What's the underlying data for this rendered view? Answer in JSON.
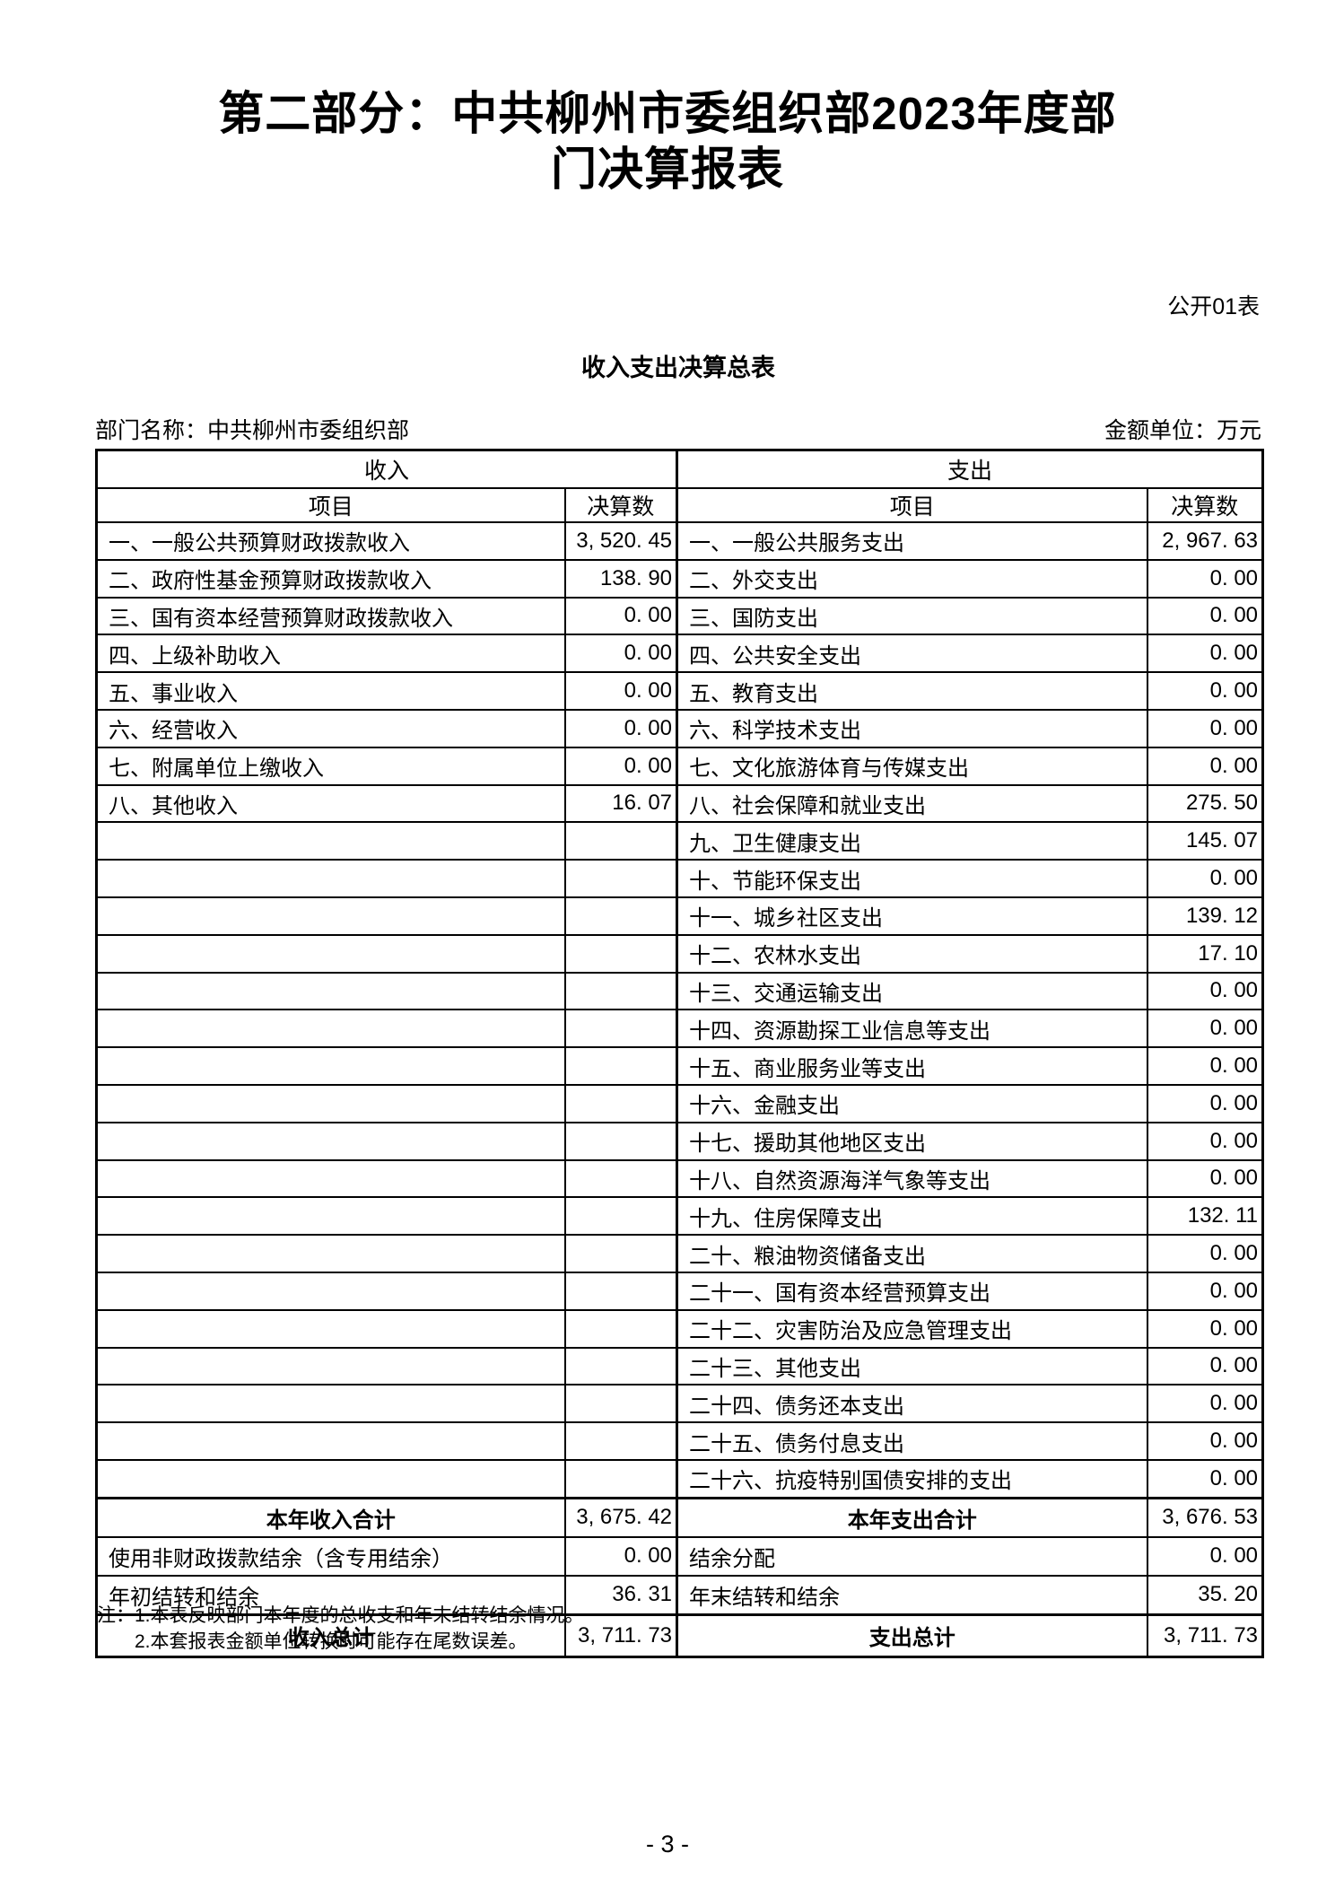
{
  "page": {
    "title_line1": "第二部分：中共柳州市委组织部2023年度部",
    "title_line2": "门决算报表",
    "table_code": "公开01表",
    "table_title": "收入支出决算总表",
    "dept_label": "部门名称：中共柳州市委组织部",
    "unit_label": "金额单位：万元",
    "page_number": "- 3 -"
  },
  "table": {
    "income_header": "收入",
    "expense_header": "支出",
    "item_header": "项目",
    "amount_header": "决算数",
    "rows": [
      {
        "income_item": "一、一般公共预算财政拨款收入",
        "income_value": "3, 520. 45",
        "expense_item": "一、一般公共服务支出",
        "expense_value": "2, 967. 63"
      },
      {
        "income_item": "二、政府性基金预算财政拨款收入",
        "income_value": "138. 90",
        "expense_item": "二、外交支出",
        "expense_value": "0. 00"
      },
      {
        "income_item": "三、国有资本经营预算财政拨款收入",
        "income_value": "0. 00",
        "expense_item": "三、国防支出",
        "expense_value": "0. 00"
      },
      {
        "income_item": "四、上级补助收入",
        "income_value": "0. 00",
        "expense_item": "四、公共安全支出",
        "expense_value": "0. 00"
      },
      {
        "income_item": "五、事业收入",
        "income_value": "0. 00",
        "expense_item": "五、教育支出",
        "expense_value": "0. 00"
      },
      {
        "income_item": "六、经营收入",
        "income_value": "0. 00",
        "expense_item": "六、科学技术支出",
        "expense_value": "0. 00"
      },
      {
        "income_item": "七、附属单位上缴收入",
        "income_value": "0. 00",
        "expense_item": "七、文化旅游体育与传媒支出",
        "expense_value": "0. 00"
      },
      {
        "income_item": "八、其他收入",
        "income_value": "16. 07",
        "expense_item": "八、社会保障和就业支出",
        "expense_value": "275. 50"
      },
      {
        "income_item": "",
        "income_value": "",
        "expense_item": "九、卫生健康支出",
        "expense_value": "145. 07"
      },
      {
        "income_item": "",
        "income_value": "",
        "expense_item": "十、节能环保支出",
        "expense_value": "0. 00"
      },
      {
        "income_item": "",
        "income_value": "",
        "expense_item": "十一、城乡社区支出",
        "expense_value": "139. 12"
      },
      {
        "income_item": "",
        "income_value": "",
        "expense_item": "十二、农林水支出",
        "expense_value": "17. 10"
      },
      {
        "income_item": "",
        "income_value": "",
        "expense_item": "十三、交通运输支出",
        "expense_value": "0. 00"
      },
      {
        "income_item": "",
        "income_value": "",
        "expense_item": "十四、资源勘探工业信息等支出",
        "expense_value": "0. 00"
      },
      {
        "income_item": "",
        "income_value": "",
        "expense_item": "十五、商业服务业等支出",
        "expense_value": "0. 00"
      },
      {
        "income_item": "",
        "income_value": "",
        "expense_item": "十六、金融支出",
        "expense_value": "0. 00"
      },
      {
        "income_item": "",
        "income_value": "",
        "expense_item": "十七、援助其他地区支出",
        "expense_value": "0. 00"
      },
      {
        "income_item": "",
        "income_value": "",
        "expense_item": "十八、自然资源海洋气象等支出",
        "expense_value": "0. 00"
      },
      {
        "income_item": "",
        "income_value": "",
        "expense_item": "十九、住房保障支出",
        "expense_value": "132. 11"
      },
      {
        "income_item": "",
        "income_value": "",
        "expense_item": "二十、粮油物资储备支出",
        "expense_value": "0. 00"
      },
      {
        "income_item": "",
        "income_value": "",
        "expense_item": "二十一、国有资本经营预算支出",
        "expense_value": "0. 00"
      },
      {
        "income_item": "",
        "income_value": "",
        "expense_item": "二十二、灾害防治及应急管理支出",
        "expense_value": "0. 00"
      },
      {
        "income_item": "",
        "income_value": "",
        "expense_item": "二十三、其他支出",
        "expense_value": "0. 00"
      },
      {
        "income_item": "",
        "income_value": "",
        "expense_item": "二十四、债务还本支出",
        "expense_value": "0. 00"
      },
      {
        "income_item": "",
        "income_value": "",
        "expense_item": "二十五、债务付息支出",
        "expense_value": "0. 00"
      },
      {
        "income_item": "",
        "income_value": "",
        "expense_item": "二十六、抗疫特别国债安排的支出",
        "expense_value": "0. 00"
      }
    ],
    "summary_rows": [
      {
        "income_item": "本年收入合计",
        "income_value": "3, 675. 42",
        "expense_item": "本年支出合计",
        "expense_value": "3, 676. 53",
        "emphasis": true,
        "thick_top": true
      },
      {
        "income_item": "使用非财政拨款结余（含专用结余）",
        "income_value": "0. 00",
        "expense_item": "结余分配",
        "expense_value": "0. 00",
        "emphasis": false,
        "thick_top": false
      },
      {
        "income_item": "年初结转和结余",
        "income_value": "36. 31",
        "expense_item": "年末结转和结余",
        "expense_value": "35. 20",
        "emphasis": false,
        "thick_top": false
      },
      {
        "income_item": "收入总计",
        "income_value": "3, 711. 73",
        "expense_item": "支出总计",
        "expense_value": "3, 711. 73",
        "emphasis": true,
        "thick_top": true
      }
    ]
  },
  "notes": {
    "line1": "注：1.本表反映部门本年度的总收支和年末结转结余情况。",
    "line2": "2.本套报表金额单位转换时可能存在尾数误差。"
  }
}
